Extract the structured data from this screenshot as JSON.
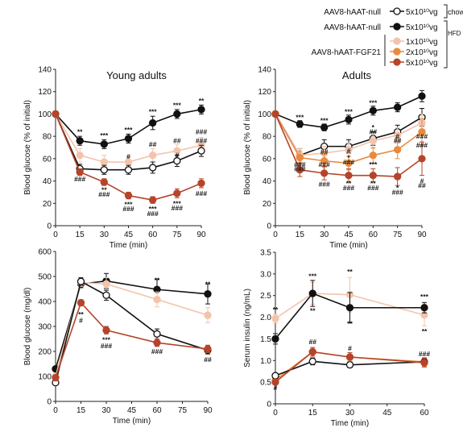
{
  "colors": {
    "chow_null": "#111111",
    "hfd_null": "#111111",
    "fgf_low": "#f3c4ad",
    "fgf_mid": "#e98a3c",
    "fgf_high": "#b5442a"
  },
  "legend": {
    "entries": [
      {
        "group": "AAV8-hAAT-null",
        "dose": "5x10¹⁰vg",
        "marker": "open"
      },
      {
        "group": "AAV8-hAAT-null",
        "dose": "5x10¹⁰vg",
        "marker": "black"
      },
      {
        "group": "AAV8-hAAT-FGF21",
        "dose": "1x10¹⁰vg",
        "marker": "fgf_low"
      },
      {
        "group": "",
        "dose": "2x10¹⁰vg",
        "marker": "fgf_mid"
      },
      {
        "group": "",
        "dose": "5x10¹⁰vg",
        "marker": "fgf_high"
      }
    ],
    "chow_label": "chow",
    "hfd_label": "HFD"
  },
  "chart_data": [
    {
      "type": "line",
      "title": "Young adults",
      "xlabel": "Time (min)",
      "ylabel": "Blood glucose (% of initial)",
      "x": [
        0,
        15,
        30,
        45,
        60,
        75,
        90
      ],
      "xlim": [
        0,
        90
      ],
      "ylim": [
        0,
        140
      ],
      "xticks": [
        "0",
        "15",
        "30",
        "45",
        "60",
        "75",
        "90"
      ],
      "yticks": [
        "0",
        "20",
        "40",
        "60",
        "80",
        "100",
        "120",
        "140"
      ],
      "series": [
        {
          "marker": "black",
          "values": [
            100,
            76,
            73,
            78,
            92,
            100,
            104
          ],
          "err": [
            0,
            4,
            4,
            4,
            6,
            4,
            4
          ]
        },
        {
          "marker": "fgf_low",
          "values": [
            100,
            63,
            57,
            57,
            63,
            67,
            72
          ],
          "err": [
            0,
            6,
            6,
            5,
            6,
            6,
            7
          ]
        },
        {
          "marker": "open",
          "values": [
            100,
            51,
            50,
            50,
            52,
            58,
            67
          ],
          "err": [
            0,
            4,
            4,
            4,
            5,
            5,
            5
          ]
        },
        {
          "marker": "fgf_high",
          "values": [
            100,
            48,
            39,
            27,
            23,
            29,
            38
          ],
          "err": [
            0,
            3,
            3,
            3,
            3,
            4,
            4
          ]
        }
      ],
      "annotations": [
        {
          "x": 15,
          "y": 84,
          "text": "**"
        },
        {
          "x": 30,
          "y": 81,
          "text": "***"
        },
        {
          "x": 45,
          "y": 86,
          "text": "***"
        },
        {
          "x": 60,
          "y": 102,
          "text": "***"
        },
        {
          "x": 75,
          "y": 108,
          "text": "***"
        },
        {
          "x": 90,
          "y": 112,
          "text": "**"
        },
        {
          "x": 60,
          "y": 73,
          "text": "##"
        },
        {
          "x": 75,
          "y": 76,
          "text": "##"
        },
        {
          "x": 90,
          "y": 84,
          "text": "###"
        },
        {
          "x": 45,
          "y": 62,
          "text": "#"
        },
        {
          "x": 75,
          "y": 63,
          "text": "#"
        },
        {
          "x": 90,
          "y": 76,
          "text": "###"
        },
        {
          "x": 15,
          "y": 42,
          "text": "###"
        },
        {
          "x": 30,
          "y": 32,
          "text": "**"
        },
        {
          "x": 30,
          "y": 28,
          "text": "###"
        },
        {
          "x": 45,
          "y": 19,
          "text": "***"
        },
        {
          "x": 45,
          "y": 15,
          "text": "###"
        },
        {
          "x": 60,
          "y": 15,
          "text": "***"
        },
        {
          "x": 60,
          "y": 11,
          "text": "###"
        },
        {
          "x": 75,
          "y": 20,
          "text": "***"
        },
        {
          "x": 75,
          "y": 16,
          "text": "###"
        },
        {
          "x": 90,
          "y": 29,
          "text": "###"
        }
      ]
    },
    {
      "type": "line",
      "title": "Adults",
      "xlabel": "Time (min)",
      "ylabel": "Blood glucose (% of initial)",
      "x": [
        0,
        15,
        30,
        45,
        60,
        75,
        90
      ],
      "xlim": [
        0,
        90
      ],
      "ylim": [
        0,
        140
      ],
      "xticks": [
        "0",
        "15",
        "30",
        "45",
        "60",
        "75",
        "90"
      ],
      "yticks": [
        "0",
        "20",
        "40",
        "60",
        "80",
        "100",
        "120",
        "140"
      ],
      "series": [
        {
          "marker": "black",
          "values": [
            100,
            91,
            88,
            95,
            103,
            106,
            116
          ],
          "err": [
            0,
            3,
            3,
            4,
            4,
            4,
            5
          ]
        },
        {
          "marker": "open",
          "values": [
            100,
            63,
            71,
            71,
            78,
            84,
            97
          ],
          "err": [
            0,
            6,
            6,
            6,
            6,
            6,
            8
          ]
        },
        {
          "marker": "fgf_low",
          "values": [
            100,
            63,
            65,
            68,
            76,
            81,
            92
          ],
          "err": [
            0,
            6,
            6,
            6,
            7,
            7,
            8
          ]
        },
        {
          "marker": "fgf_mid",
          "values": [
            100,
            61,
            58,
            56,
            63,
            68,
            84
          ],
          "err": [
            0,
            6,
            6,
            6,
            7,
            8,
            12
          ]
        },
        {
          "marker": "fgf_high",
          "values": [
            100,
            50,
            47,
            45,
            45,
            44,
            60
          ],
          "err": [
            0,
            6,
            6,
            6,
            6,
            8,
            15
          ]
        }
      ],
      "annotations": [
        {
          "x": 15,
          "y": 97,
          "text": "***"
        },
        {
          "x": 30,
          "y": 94,
          "text": "***"
        },
        {
          "x": 45,
          "y": 102,
          "text": "***"
        },
        {
          "x": 60,
          "y": 110,
          "text": "***"
        },
        {
          "x": 60,
          "y": 88,
          "text": "*"
        },
        {
          "x": 60,
          "y": 84,
          "text": "##"
        },
        {
          "x": 75,
          "y": 80,
          "text": "#"
        },
        {
          "x": 75,
          "y": 76,
          "text": "##"
        },
        {
          "x": 90,
          "y": 80,
          "text": "###"
        },
        {
          "x": 90,
          "y": 72,
          "text": "###"
        },
        {
          "x": 30,
          "y": 66,
          "text": "##"
        },
        {
          "x": 45,
          "y": 67,
          "text": "#"
        },
        {
          "x": 15,
          "y": 55,
          "text": "###"
        },
        {
          "x": 15,
          "y": 51,
          "text": "###"
        },
        {
          "x": 30,
          "y": 55,
          "text": "###"
        },
        {
          "x": 45,
          "y": 61,
          "text": "*"
        },
        {
          "x": 45,
          "y": 57,
          "text": "###"
        },
        {
          "x": 60,
          "y": 55,
          "text": "***"
        },
        {
          "x": 45,
          "y": 38,
          "text": "**"
        },
        {
          "x": 45,
          "y": 34,
          "text": "###"
        },
        {
          "x": 60,
          "y": 38,
          "text": "**"
        },
        {
          "x": 60,
          "y": 34,
          "text": "###"
        },
        {
          "x": 30,
          "y": 37,
          "text": "###"
        },
        {
          "x": 75,
          "y": 34,
          "text": "*"
        },
        {
          "x": 75,
          "y": 30,
          "text": "###"
        },
        {
          "x": 90,
          "y": 40,
          "text": "#"
        },
        {
          "x": 90,
          "y": 36,
          "text": "##"
        }
      ]
    },
    {
      "type": "line",
      "title": "",
      "xlabel": "Time (min)",
      "ylabel": "Blood glucose (mg/dl)",
      "x": [
        0,
        15,
        30,
        60,
        90
      ],
      "xlim": [
        0,
        90
      ],
      "ylim": [
        0,
        600
      ],
      "xticks": [
        "0",
        "15",
        "30",
        "45",
        "60",
        "75",
        "90"
      ],
      "xtick_values": [
        0,
        15,
        30,
        45,
        60,
        75,
        90
      ],
      "yticks": [
        "0",
        "100",
        "200",
        "300",
        "400",
        "500",
        "600"
      ],
      "series": [
        {
          "marker": "black",
          "values": [
            130,
            470,
            482,
            448,
            430
          ],
          "err": [
            5,
            15,
            30,
            40,
            40
          ]
        },
        {
          "marker": "fgf_low",
          "values": [
            100,
            475,
            470,
            408,
            345
          ],
          "err": [
            5,
            15,
            25,
            30,
            30
          ]
        },
        {
          "marker": "open",
          "values": [
            75,
            480,
            425,
            270,
            205
          ],
          "err": [
            5,
            15,
            20,
            20,
            15
          ]
        },
        {
          "marker": "fgf_high",
          "values": [
            95,
            395,
            285,
            235,
            210
          ],
          "err": [
            5,
            12,
            15,
            15,
            15
          ]
        }
      ],
      "annotations": [
        {
          "x": 60,
          "y": 485,
          "text": "**"
        },
        {
          "x": 90,
          "y": 470,
          "text": "**"
        },
        {
          "x": 15,
          "y": 348,
          "text": "**"
        },
        {
          "x": 15,
          "y": 324,
          "text": "#"
        },
        {
          "x": 30,
          "y": 247,
          "text": "***"
        },
        {
          "x": 30,
          "y": 223,
          "text": "###"
        },
        {
          "x": 60,
          "y": 200,
          "text": "###"
        },
        {
          "x": 90,
          "y": 168,
          "text": "##"
        }
      ]
    },
    {
      "type": "line",
      "title": "",
      "xlabel": "Time (min)",
      "ylabel": "Serum insulin (ng/mL)",
      "x": [
        0,
        15,
        30,
        60
      ],
      "xlim": [
        0,
        60
      ],
      "ylim": [
        0,
        3.5
      ],
      "xticks": [
        "0",
        "15",
        "30",
        "45",
        "60"
      ],
      "xtick_values": [
        0,
        15,
        30,
        45,
        60
      ],
      "yticks": [
        "0",
        "0.5",
        "1.0",
        "1.5",
        "2.0",
        "2.5",
        "3.0",
        "3.5"
      ],
      "series": [
        {
          "marker": "fgf_low",
          "values": [
            1.97,
            2.55,
            2.52,
            2.05
          ],
          "err": [
            0.1,
            0.25,
            0.4,
            0.25
          ]
        },
        {
          "marker": "black",
          "values": [
            1.5,
            2.55,
            2.22,
            2.22
          ],
          "err": [
            0.12,
            0.3,
            0.35,
            0.12
          ]
        },
        {
          "marker": "fgf_mid",
          "values": [
            0.55,
            1.2,
            1.08,
            0.97
          ],
          "err": [
            0.05,
            0.1,
            0.1,
            0.1
          ]
        },
        {
          "marker": "open",
          "values": [
            0.65,
            0.98,
            0.9,
            0.97
          ],
          "err": [
            0.05,
            0.08,
            0.06,
            0.08
          ]
        },
        {
          "marker": "fgf_high",
          "values": [
            0.5,
            1.2,
            1.08,
            0.95
          ],
          "err": [
            0.05,
            0.1,
            0.1,
            0.1
          ]
        }
      ],
      "annotations": [
        {
          "x": 0,
          "y": 2.18,
          "text": "**"
        },
        {
          "x": 15,
          "y": 2.95,
          "text": "***"
        },
        {
          "x": 15,
          "y": 2.15,
          "text": "**"
        },
        {
          "x": 30,
          "y": 3.05,
          "text": "**"
        },
        {
          "x": 30,
          "y": 1.85,
          "text": "**"
        },
        {
          "x": 60,
          "y": 2.48,
          "text": "***"
        },
        {
          "x": 60,
          "y": 1.68,
          "text": "**"
        },
        {
          "x": 0,
          "y": 0.37,
          "text": "#"
        },
        {
          "x": 15,
          "y": 1.43,
          "text": "##"
        },
        {
          "x": 30,
          "y": 1.28,
          "text": "#"
        },
        {
          "x": 60,
          "y": 1.15,
          "text": "###"
        }
      ]
    }
  ]
}
